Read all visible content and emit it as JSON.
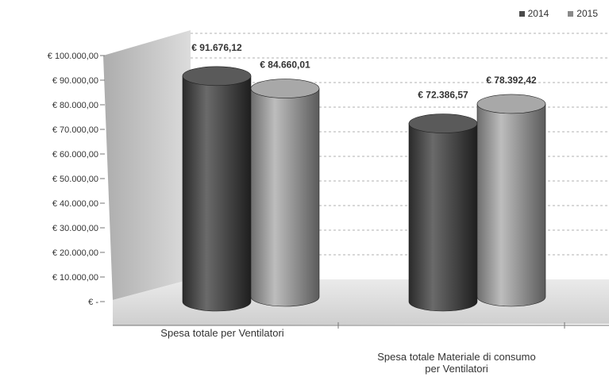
{
  "chart_data": {
    "type": "bar",
    "style": "3d-cylinder",
    "categories": [
      "Spesa totale per Ventilatori",
      "Spesa totale Materiale di consumo per Ventilatori"
    ],
    "series": [
      {
        "name": "2014",
        "values": [
          91676.12,
          72386.57
        ],
        "color": "#4a4a4a"
      },
      {
        "name": "2015",
        "values": [
          84660.01,
          78392.42
        ],
        "color": "#8a8a8a"
      }
    ],
    "data_labels": [
      [
        "€ 91.676,12",
        "€ 72.386,57"
      ],
      [
        "€ 84.660,01",
        "€ 78.392,42"
      ]
    ],
    "y_ticks": [
      "€ -",
      "€ 10.000,00",
      "€ 20.000,00",
      "€ 30.000,00",
      "€ 40.000,00",
      "€ 50.000,00",
      "€ 60.000,00",
      "€ 70.000,00",
      "€ 80.000,00",
      "€ 90.000,00",
      "€ 100.000,00"
    ],
    "ylim": [
      0,
      100000
    ],
    "grid": true,
    "legend_position": "top-right",
    "title": "",
    "xlabel": "",
    "ylabel": ""
  }
}
